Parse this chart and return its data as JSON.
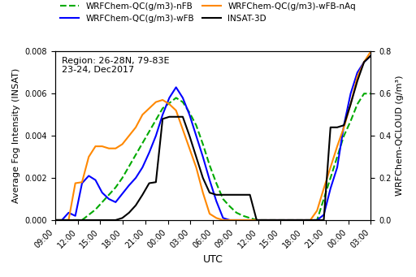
{
  "title_annotation": "Region: 26-28N, 79-83E\n23-24, Dec2017",
  "xlabel": "UTC",
  "ylabel_left": "Average Fog Intensity (INSAT)",
  "ylabel_right": "WRFChem-QCLOUD (g/m³)",
  "ylim_left": [
    0.0,
    0.008
  ],
  "ylim_right": [
    0.0,
    0.8
  ],
  "yticks_left": [
    0.0,
    0.002,
    0.004,
    0.006,
    0.008
  ],
  "yticks_right": [
    0.0,
    0.2,
    0.4,
    0.6,
    0.8
  ],
  "xtick_labels": [
    "09:00",
    "12:00",
    "15:00",
    "18:00",
    "21:00",
    "00:00",
    "03:00",
    "06:00",
    "09:00",
    "12:00",
    "15:00",
    "18:00",
    "21:00",
    "00:00",
    "03:00"
  ],
  "legend_entries": [
    {
      "label": "WRFChem-QC(g/m3)-nFB",
      "color": "#00aa00",
      "linestyle": "--",
      "linewidth": 1.5
    },
    {
      "label": "WRFChem-QC(g/m3)-wFB",
      "color": "#0000ff",
      "linestyle": "-",
      "linewidth": 1.5
    },
    {
      "label": "WRFChem-QC(g/m3)-wFB-nAq",
      "color": "#ff8800",
      "linestyle": "-",
      "linewidth": 1.5
    },
    {
      "label": "INSAT-3D",
      "color": "#000000",
      "linestyle": "-",
      "linewidth": 1.5
    }
  ],
  "num_ticks": 15,
  "v_nFB": [
    0.0,
    0.0,
    0.0,
    0.0,
    0.0,
    0.00025,
    0.0005,
    0.00085,
    0.0012,
    0.00155,
    0.002,
    0.00255,
    0.0031,
    0.00365,
    0.0042,
    0.00475,
    0.0053,
    0.00555,
    0.0058,
    0.0056,
    0.0051,
    0.0045,
    0.0036,
    0.0026,
    0.00175,
    0.001,
    0.00065,
    0.00035,
    0.0002,
    0.0001,
    0.0,
    0.0,
    0.0,
    0.0,
    0.0,
    0.0,
    0.0,
    0.0,
    0.0,
    0.0,
    0.001,
    0.002,
    0.003,
    0.004,
    0.0047,
    0.0055,
    0.006,
    0.006
  ],
  "v_wFB": [
    0.0,
    0.0,
    0.00035,
    0.0002,
    0.00175,
    0.0021,
    0.0019,
    0.0013,
    0.001,
    0.00085,
    0.00125,
    0.00165,
    0.002,
    0.0025,
    0.0032,
    0.004,
    0.005,
    0.0058,
    0.0063,
    0.0058,
    0.005,
    0.004,
    0.003,
    0.0019,
    0.0009,
    0.0001,
    0.0,
    0.0,
    0.0,
    0.0,
    0.0,
    0.0,
    0.0,
    0.0,
    0.0,
    0.0,
    0.0,
    0.0,
    0.0,
    0.0,
    0.00025,
    0.0015,
    0.0025,
    0.0045,
    0.006,
    0.007,
    0.0075,
    0.0078
  ],
  "v_wFB_nAq": [
    0.0,
    0.0,
    0.0,
    0.00175,
    0.0018,
    0.003,
    0.0035,
    0.0035,
    0.0034,
    0.0034,
    0.0036,
    0.004,
    0.0044,
    0.005,
    0.0053,
    0.0056,
    0.0057,
    0.0055,
    0.0052,
    0.0043,
    0.0034,
    0.0025,
    0.0013,
    0.0003,
    0.0001,
    0.0,
    0.0,
    0.0,
    0.0,
    0.0,
    0.0,
    0.0,
    0.0,
    0.0,
    0.0,
    0.0,
    0.0,
    0.0,
    0.0,
    0.00045,
    0.0015,
    0.0025,
    0.0035,
    0.0044,
    0.0055,
    0.0068,
    0.0075,
    0.008
  ],
  "v_insat": [
    0.0,
    0.0,
    0.0,
    0.0,
    0.0,
    0.0,
    0.0,
    0.0,
    0.0,
    0.0,
    0.0001,
    0.00035,
    0.0007,
    0.0012,
    0.00175,
    0.0018,
    0.0048,
    0.0049,
    0.0049,
    0.0049,
    0.004,
    0.003,
    0.002,
    0.0013,
    0.0012,
    0.0012,
    0.0012,
    0.0012,
    0.0012,
    0.0012,
    0.0,
    0.0,
    0.0,
    0.0,
    0.0,
    0.0,
    0.0,
    0.0,
    0.0,
    0.0,
    0.0,
    0.0044,
    0.0044,
    0.0045,
    0.0055,
    0.0066,
    0.0075,
    0.0078
  ]
}
